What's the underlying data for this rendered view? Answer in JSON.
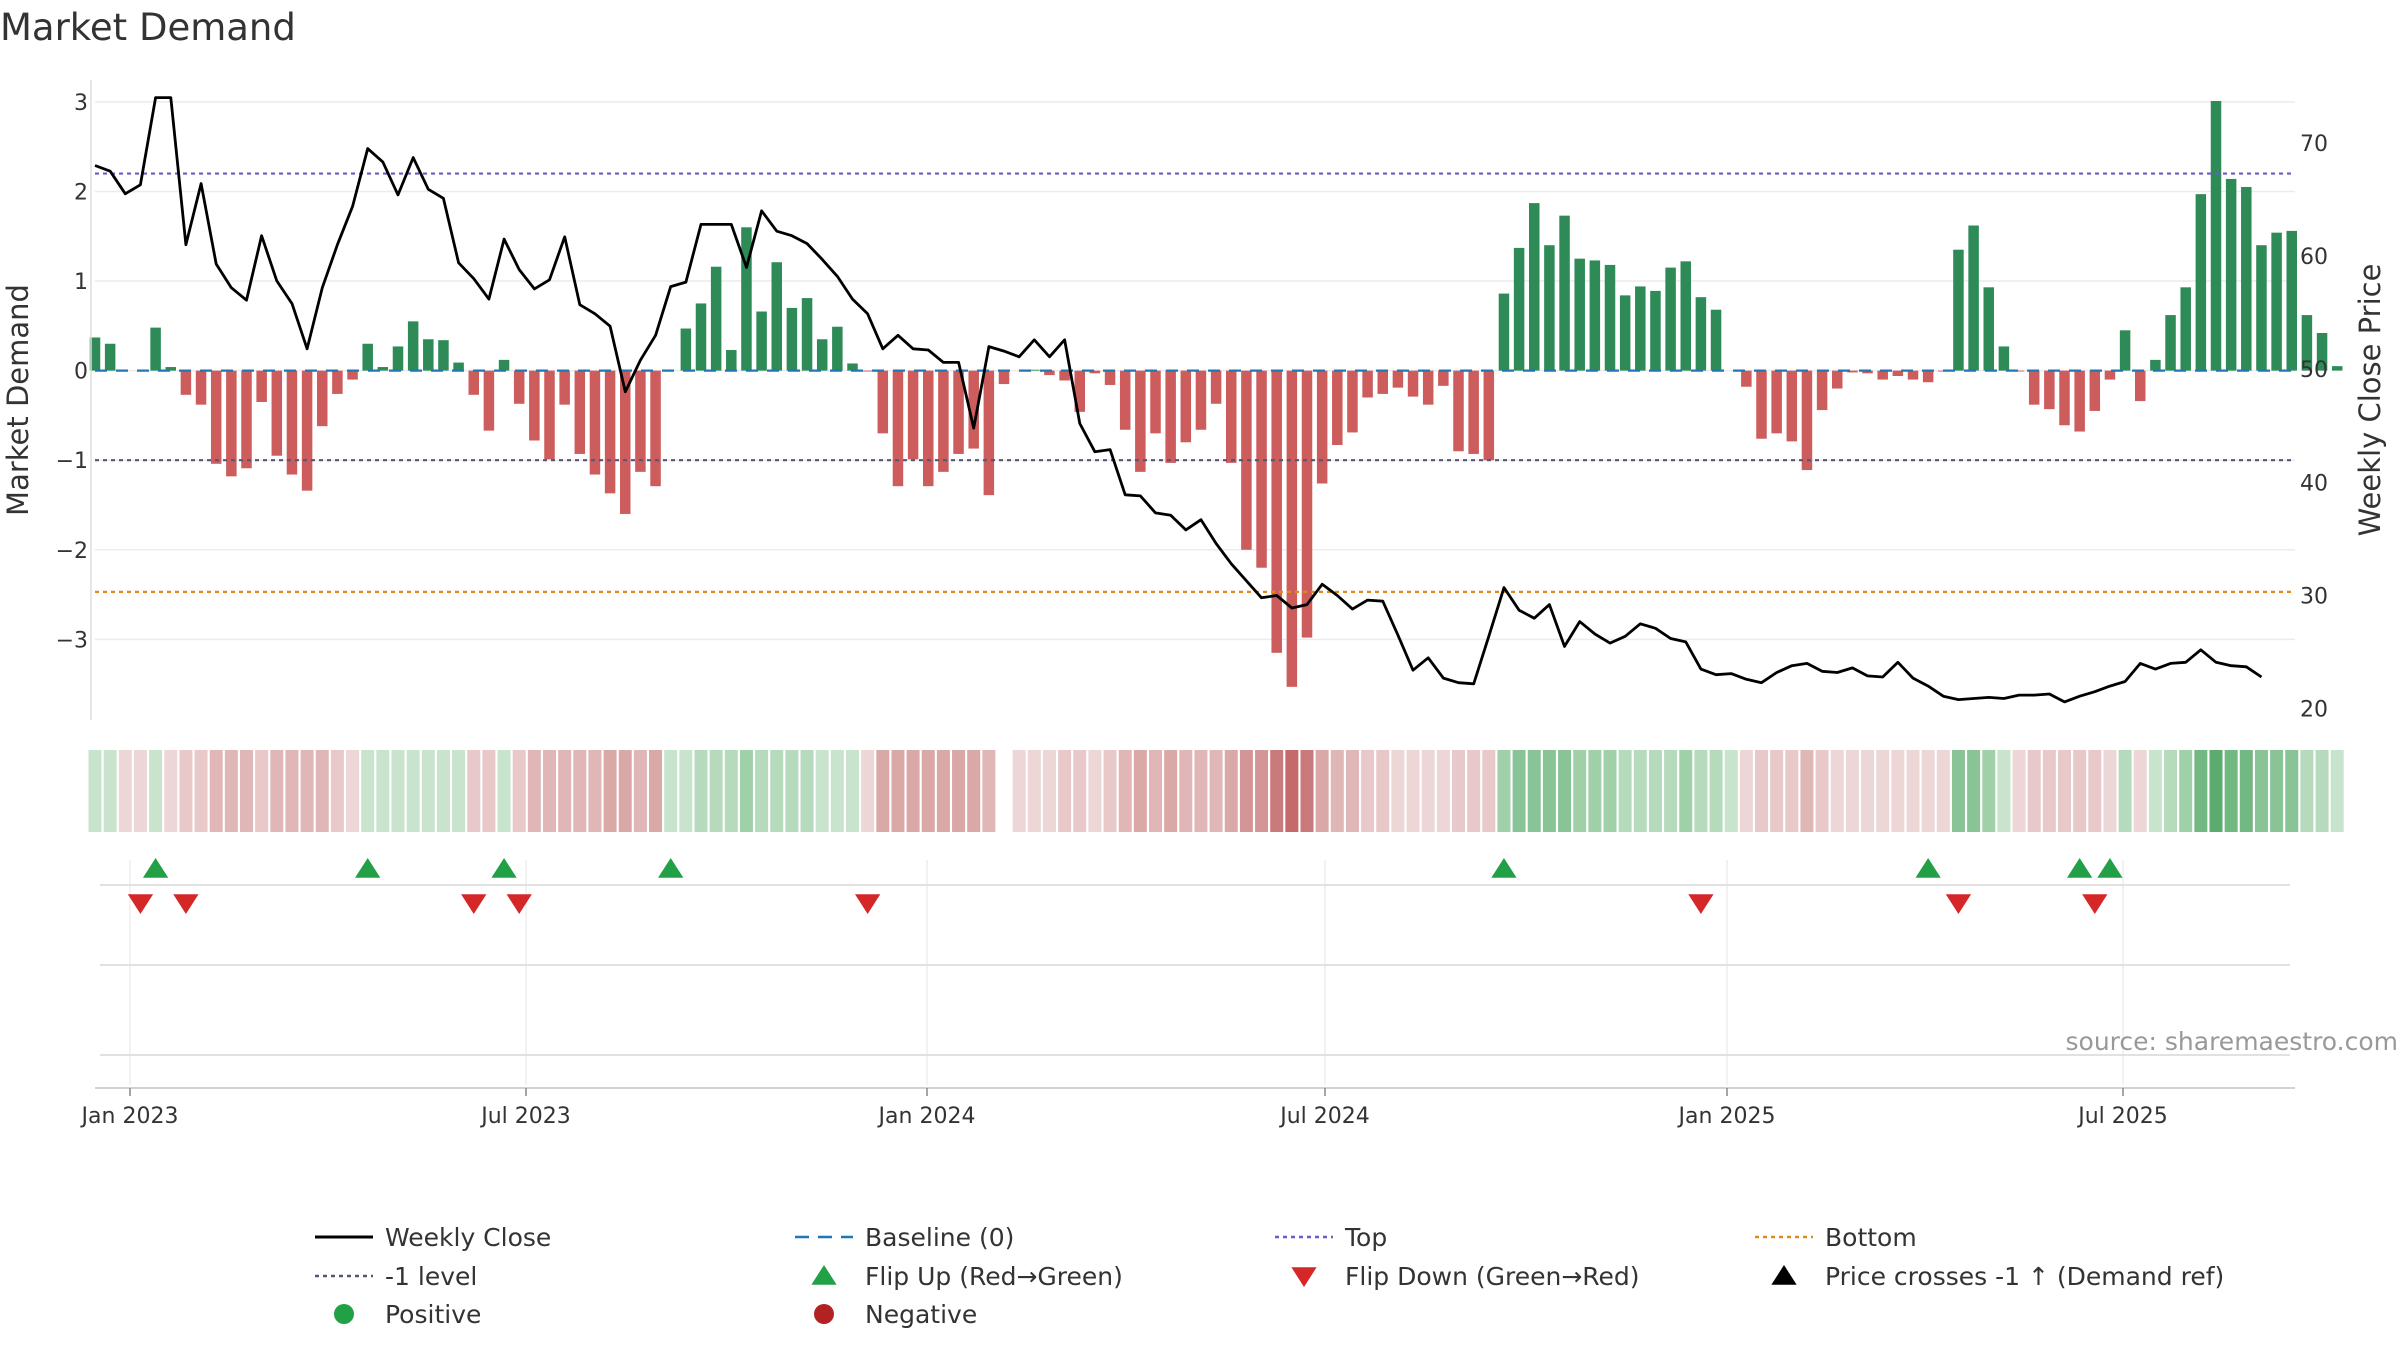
{
  "chart_data": {
    "type": "bar",
    "title": "Market Demand",
    "ylabel": "Market Demand",
    "y2label": "Weekly Close Price",
    "ylim": [
      -3.9,
      3.3
    ],
    "y2lim": [
      19,
      76
    ],
    "yticks": [
      3,
      2,
      1,
      0,
      -1,
      -2,
      -3
    ],
    "ytick_labels": [
      "3",
      "2",
      "1",
      "0",
      "−1",
      "−2",
      "−3"
    ],
    "y2ticks": [
      70,
      60,
      50,
      40,
      30,
      20
    ],
    "xticks": [
      "Jan 2023",
      "Jul 2023",
      "Jan 2024",
      "Jul 2024",
      "Jan 2025",
      "Jul 2025"
    ],
    "source": "source: sharemaestro.com",
    "reference_lines": {
      "top": 2.2,
      "bottom": -2.47,
      "minus_one": -1,
      "baseline": 0
    },
    "colors": {
      "positive": "#2e8b57",
      "negative": "#cd5c5c",
      "line": "#000000",
      "top": "#6a5acd",
      "bottom": "#e08a1e",
      "minus_one": "#555577",
      "baseline": "#1f77b4",
      "flip_up": "#22a045",
      "flip_down": "#d62728"
    },
    "demand": [
      0.37,
      0.3,
      0,
      0,
      0.48,
      0.04,
      -0.27,
      -0.38,
      -1.04,
      -1.18,
      -1.09,
      -0.35,
      -0.95,
      -1.16,
      -1.34,
      -0.62,
      -0.26,
      -0.1,
      0.3,
      0.04,
      0.27,
      0.55,
      0.35,
      0.34,
      0.09,
      -0.27,
      -0.67,
      0.12,
      -0.37,
      -0.78,
      -0.99,
      -0.38,
      -0.93,
      -1.16,
      -1.37,
      -1.6,
      -1.13,
      -1.29,
      0,
      0.47,
      0.75,
      1.16,
      0.23,
      1.6,
      0.66,
      1.21,
      0.7,
      0.81,
      0.35,
      0.49,
      0.08,
      -0.01,
      -0.7,
      -1.29,
      -0.99,
      -1.29,
      -1.13,
      -0.93,
      -0.87,
      -1.39,
      -0.15,
      0,
      0.01,
      -0.05,
      -0.11,
      -0.46,
      -0.03,
      -0.16,
      -0.66,
      -1.13,
      -0.7,
      -1.03,
      -0.8,
      -0.66,
      -0.37,
      -1.03,
      -2.0,
      -2.2,
      -3.15,
      -3.53,
      -2.98,
      -1.26,
      -0.83,
      -0.69,
      -0.3,
      -0.26,
      -0.19,
      -0.29,
      -0.38,
      -0.17,
      -0.9,
      -0.93,
      -1.0,
      0.86,
      1.37,
      1.87,
      1.4,
      1.73,
      1.25,
      1.23,
      1.18,
      0.84,
      0.94,
      0.89,
      1.15,
      1.22,
      0.82,
      0.68,
      0,
      -0.18,
      -0.76,
      -0.7,
      -0.79,
      -1.11,
      -0.44,
      -0.2,
      -0.02,
      -0.03,
      -0.1,
      -0.06,
      -0.1,
      -0.13,
      -0.01,
      1.35,
      1.62,
      0.93,
      0.27,
      -0.01,
      -0.38,
      -0.43,
      -0.61,
      -0.68,
      -0.45,
      -0.1,
      0.45,
      -0.34,
      0.12,
      0.62,
      0.93,
      1.97,
      3.01,
      2.14,
      2.05,
      1.4,
      1.54,
      1.56,
      0.62,
      0.42,
      0.05
    ],
    "weekly_close": [
      68,
      67.5,
      65.5,
      66.3,
      74,
      74,
      61,
      66.4,
      59.3,
      57.2,
      56.1,
      61.8,
      57.8,
      55.8,
      51.8,
      57.2,
      61,
      64.4,
      69.5,
      68.3,
      65.4,
      68.7,
      65.9,
      65.1,
      59.4,
      58,
      56.2,
      61.5,
      58.8,
      57.1,
      57.9,
      61.7,
      55.7,
      54.9,
      53.8,
      48,
      50.8,
      53,
      57.3,
      57.7,
      62.8,
      62.8,
      62.8,
      59,
      64,
      62.2,
      61.8,
      61.1,
      59.7,
      58.2,
      56.2,
      54.9,
      51.8,
      53,
      51.8,
      51.7,
      50.6,
      50.6,
      44.8,
      52,
      51.6,
      51.1,
      52.6,
      51.1,
      52.6,
      45.2,
      42.7,
      42.9,
      38.9,
      38.8,
      37.3,
      37.1,
      35.8,
      36.7,
      34.6,
      32.8,
      31.3,
      29.8,
      30,
      28.9,
      29.2,
      31,
      30,
      28.8,
      29.6,
      29.5,
      26.5,
      23.4,
      24.5,
      22.7,
      22.3,
      22.2,
      26.4,
      30.7,
      28.7,
      28,
      29.2,
      25.5,
      27.7,
      26.6,
      25.8,
      26.4,
      27.5,
      27.1,
      26.2,
      25.9,
      23.5,
      23,
      23.1,
      22.6,
      22.3,
      23.2,
      23.8,
      24,
      23.3,
      23.2,
      23.6,
      22.9,
      22.8,
      24.1,
      22.7,
      22,
      21.1,
      20.8,
      20.9,
      21,
      20.9,
      21.2,
      21.2,
      21.3,
      20.6,
      21.1,
      21.5,
      22,
      22.4,
      24,
      23.5,
      24,
      24.1,
      25.2,
      24.1,
      23.8,
      23.7,
      22.8
    ],
    "strip_colors": [
      "#c8e4cd",
      "#c8e4cd",
      "#ecd6d6",
      "#ecd6d6",
      "#c8e4cd",
      "#ecd6d6",
      "#e8c8c8",
      "#e8c8c8",
      "#e1b6b6",
      "#e1b6b6",
      "#e1b6b6",
      "#e8c8c8",
      "#e1b6b6",
      "#e1b6b6",
      "#e1b6b6",
      "#e1b6b6",
      "#e8c8c8",
      "#ecd6d6",
      "#c8e4cd",
      "#c8e4cd",
      "#c8e4cd",
      "#c8e4cd",
      "#c8e4cd",
      "#c8e4cd",
      "#c8e4cd",
      "#e8c8c8",
      "#e8c8c8",
      "#c8e4cd",
      "#e8c8c8",
      "#e1b6b6",
      "#e1b6b6",
      "#e1b6b6",
      "#e1b6b6",
      "#e1b6b6",
      "#dba8a8",
      "#dba8a8",
      "#e1b6b6",
      "#dba8a8",
      "#c8e4cd",
      "#c8e4cd",
      "#b5dbbc",
      "#b5dbbc",
      "#b5dbbc",
      "#9fd0a8",
      "#b5dbbc",
      "#b5dbbc",
      "#b5dbbc",
      "#b5dbbc",
      "#c8e4cd",
      "#c8e4cd",
      "#c8e4cd",
      "#ecd6d6",
      "#dba8a8",
      "#dba8a8",
      "#dba8a8",
      "#dba8a8",
      "#dba8a8",
      "#dba8a8",
      "#dba8a8",
      "#e1b6b6",
      "#ffffff",
      "#ecd6d6",
      "#ecd6d6",
      "#ecd6d6",
      "#e8c8c8",
      "#e8c8c8",
      "#ecd6d6",
      "#e8c8c8",
      "#e1b6b6",
      "#dba8a8",
      "#e1b6b6",
      "#dba8a8",
      "#e1b6b6",
      "#e1b6b6",
      "#e1b6b6",
      "#dba8a8",
      "#d39595",
      "#d39595",
      "#c97a7a",
      "#c56a6a",
      "#c97a7a",
      "#dba8a8",
      "#e1b6b6",
      "#e1b6b6",
      "#e8c8c8",
      "#e8c8c8",
      "#ecd6d6",
      "#ecd6d6",
      "#ecd6d6",
      "#ecd6d6",
      "#e8c8c8",
      "#e8c8c8",
      "#e8c8c8",
      "#9fd0a8",
      "#88c495",
      "#88c495",
      "#88c495",
      "#88c495",
      "#9fd0a8",
      "#9fd0a8",
      "#9fd0a8",
      "#b5dbbc",
      "#b5dbbc",
      "#b5dbbc",
      "#b5dbbc",
      "#9fd0a8",
      "#b5dbbc",
      "#b5dbbc",
      "#c8e4cd",
      "#ecd6d6",
      "#e8c8c8",
      "#e8c8c8",
      "#e8c8c8",
      "#e1b6b6",
      "#e8c8c8",
      "#ecd6d6",
      "#ecd6d6",
      "#ecd6d6",
      "#ecd6d6",
      "#ecd6d6",
      "#ecd6d6",
      "#ecd6d6",
      "#ecd6d6",
      "#88c495",
      "#88c495",
      "#9fd0a8",
      "#c8e4cd",
      "#ecd6d6",
      "#e8c8c8",
      "#e8c8c8",
      "#e8c8c8",
      "#e8c8c8",
      "#e8c8c8",
      "#ecd6d6",
      "#b5dbbc",
      "#ecd6d6",
      "#c8e4cd",
      "#b5dbbc",
      "#9fd0a8",
      "#72b882",
      "#5aab6d",
      "#72b882",
      "#72b882",
      "#88c495",
      "#88c495",
      "#88c495",
      "#b5dbbc",
      "#b5dbbc",
      "#c8e4cd"
    ],
    "flip_up_indices": [
      4,
      18,
      27,
      38,
      93,
      121,
      131,
      133
    ],
    "flip_down_indices": [
      3,
      6,
      25,
      28,
      51,
      106,
      123,
      132
    ],
    "legend": [
      {
        "label": "Weekly Close",
        "symbol": "line-solid",
        "color": "#000000"
      },
      {
        "label": "Baseline (0)",
        "symbol": "line-dashed",
        "color": "#1f77b4"
      },
      {
        "label": "Top",
        "symbol": "line-dotted",
        "color": "#6a5acd"
      },
      {
        "label": "Bottom",
        "symbol": "line-dotted",
        "color": "#e08a1e"
      },
      {
        "label": "-1 level",
        "symbol": "line-dotted",
        "color": "#555577"
      },
      {
        "label": "Flip Up (Red→Green)",
        "symbol": "triangle-up",
        "color": "#22a045"
      },
      {
        "label": "Flip Down (Green→Red)",
        "symbol": "triangle-down",
        "color": "#d62728"
      },
      {
        "label": "Price crosses -1 ↑ (Demand ref)",
        "symbol": "triangle-up",
        "color": "#000000"
      },
      {
        "label": "Positive",
        "symbol": "circle",
        "color": "#22a045"
      },
      {
        "label": "Negative",
        "symbol": "circle",
        "color": "#b22222"
      }
    ]
  }
}
